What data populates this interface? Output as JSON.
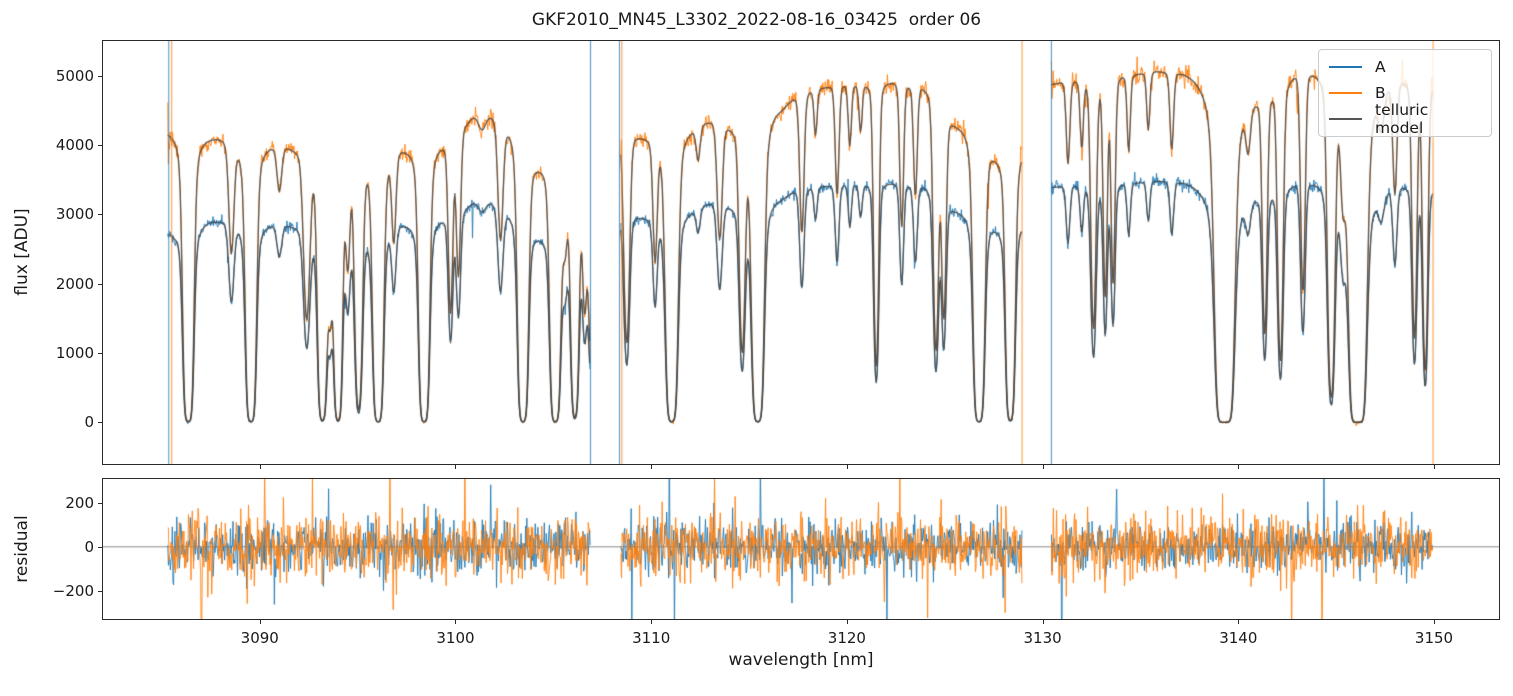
{
  "figure_title": "GKF2010_MN45_L3302_2022-08-16_03425  order 06",
  "chart_data": {
    "type": "line",
    "title": "GKF2010_MN45_L3302_2022-08-16_03425  order 06",
    "xlabel": "wavelength [nm]",
    "ylabel_top": "flux [ADU]",
    "ylabel_bottom": "residual",
    "xlim": [
      3081.99,
      3153.32
    ],
    "ylim_top": [
      -600,
      5500
    ],
    "ylim_bottom": [
      -330,
      310
    ],
    "xticks": [
      3090,
      3100,
      3110,
      3120,
      3130,
      3140,
      3150
    ],
    "xtick_labels": [
      "3090",
      "3100",
      "3110",
      "3120",
      "3130",
      "3140",
      "3150"
    ],
    "yticks_top": [
      0,
      1000,
      2000,
      3000,
      4000,
      5000
    ],
    "ytick_labels_top": [
      "0",
      "1000",
      "2000",
      "3000",
      "4000",
      "5000"
    ],
    "yticks_bottom": [
      -200,
      0,
      200
    ],
    "ytick_labels_bottom": [
      "−200",
      "0",
      "200"
    ],
    "legend": [
      {
        "label": "A",
        "color": "#1f77b4"
      },
      {
        "label": "B",
        "color": "#ff7f0e"
      },
      {
        "label": "telluric model",
        "color": "#555555"
      }
    ],
    "grid": false,
    "legend_position": "upper right",
    "model_color": "#434343",
    "model_alpha": 0.82,
    "series_alpha": 0.88,
    "zero_line_color": "#8a8a8a",
    "segments": [
      [
        3085.3,
        3106.9
      ],
      [
        3108.45,
        3128.95
      ],
      [
        3130.45,
        3149.95
      ]
    ],
    "continuum_A": [
      [
        3085.3,
        2780
      ],
      [
        3087.6,
        2960
      ],
      [
        3089.3,
        2950
      ],
      [
        3090.8,
        2920
      ],
      [
        3092.3,
        2870
      ],
      [
        3094.3,
        2900
      ],
      [
        3095.5,
        2880
      ],
      [
        3097.3,
        2960
      ],
      [
        3099.4,
        3020
      ],
      [
        3100.3,
        3120
      ],
      [
        3101.3,
        3270
      ],
      [
        3102.9,
        3130
      ],
      [
        3104.3,
        2840
      ],
      [
        3105.8,
        2890
      ],
      [
        3106.9,
        2870
      ],
      [
        3108.5,
        3060
      ],
      [
        3109.7,
        3020
      ],
      [
        3111.8,
        3120
      ],
      [
        3113.2,
        3220
      ],
      [
        3114.2,
        3180
      ],
      [
        3115.0,
        3120
      ],
      [
        3116.5,
        3280
      ],
      [
        3117.5,
        3380
      ],
      [
        3118.5,
        3420
      ],
      [
        3120.0,
        3450
      ],
      [
        3122.0,
        3480
      ],
      [
        3123.7,
        3450
      ],
      [
        3125.8,
        3120
      ],
      [
        3126.8,
        3080
      ],
      [
        3127.9,
        2920
      ],
      [
        3128.9,
        2940
      ],
      [
        3130.4,
        3420
      ],
      [
        3131.5,
        3450
      ],
      [
        3133.0,
        3460
      ],
      [
        3134.5,
        3480
      ],
      [
        3136.0,
        3520
      ],
      [
        3137.5,
        3540
      ],
      [
        3139.0,
        3520
      ],
      [
        3140.3,
        3420
      ],
      [
        3141.2,
        3380
      ],
      [
        3142.3,
        3480
      ],
      [
        3143.3,
        3580
      ],
      [
        3144.3,
        3560
      ],
      [
        3145.8,
        3520
      ],
      [
        3147.0,
        3490
      ],
      [
        3148.2,
        3500
      ],
      [
        3149.3,
        3460
      ],
      [
        3149.9,
        3420
      ]
    ],
    "continuum_B": [
      [
        3085.3,
        4250
      ],
      [
        3087.6,
        4180
      ],
      [
        3089.3,
        4100
      ],
      [
        3090.8,
        4080
      ],
      [
        3092.3,
        4000
      ],
      [
        3094.3,
        4050
      ],
      [
        3095.5,
        4020
      ],
      [
        3097.3,
        4080
      ],
      [
        3099.4,
        4120
      ],
      [
        3100.3,
        4350
      ],
      [
        3101.3,
        4550
      ],
      [
        3102.9,
        4380
      ],
      [
        3104.3,
        3920
      ],
      [
        3105.8,
        3980
      ],
      [
        3106.9,
        3950
      ],
      [
        3108.5,
        4250
      ],
      [
        3109.7,
        4200
      ],
      [
        3111.8,
        4320
      ],
      [
        3113.2,
        4420
      ],
      [
        3114.2,
        4350
      ],
      [
        3115.0,
        4280
      ],
      [
        3116.5,
        4600
      ],
      [
        3117.5,
        4750
      ],
      [
        3118.5,
        4850
      ],
      [
        3120.0,
        4900
      ],
      [
        3122.0,
        4950
      ],
      [
        3123.7,
        4900
      ],
      [
        3125.8,
        4380
      ],
      [
        3126.8,
        4300
      ],
      [
        3127.9,
        3980
      ],
      [
        3128.9,
        4000
      ],
      [
        3130.4,
        4920
      ],
      [
        3131.5,
        4980
      ],
      [
        3133.0,
        5020
      ],
      [
        3134.5,
        5060
      ],
      [
        3136.0,
        5120
      ],
      [
        3137.5,
        5150
      ],
      [
        3139.0,
        5120
      ],
      [
        3140.3,
        4900
      ],
      [
        3141.2,
        4850
      ],
      [
        3142.3,
        5050
      ],
      [
        3143.3,
        5230
      ],
      [
        3144.3,
        5200
      ],
      [
        3145.8,
        5120
      ],
      [
        3147.0,
        5060
      ],
      [
        3148.2,
        5060
      ],
      [
        3149.3,
        5000
      ],
      [
        3149.9,
        4950
      ]
    ],
    "absorption_lines": [
      [
        3086.35,
        6,
        0.15
      ],
      [
        3088.55,
        0.5,
        0.12
      ],
      [
        3089.55,
        6,
        0.15
      ],
      [
        3091.0,
        0.18,
        0.12
      ],
      [
        3092.4,
        0.95,
        0.14
      ],
      [
        3093.2,
        5,
        0.14
      ],
      [
        3093.6,
        0.8,
        0.1
      ],
      [
        3094.0,
        5,
        0.13
      ],
      [
        3094.5,
        0.5,
        0.1
      ],
      [
        3095.05,
        3.0,
        0.13
      ],
      [
        3096.05,
        6,
        0.15
      ],
      [
        3096.85,
        0.4,
        0.1
      ],
      [
        3098.4,
        6,
        0.15
      ],
      [
        3099.75,
        0.95,
        0.1
      ],
      [
        3100.15,
        0.7,
        0.1
      ],
      [
        3101.35,
        0.06,
        0.2
      ],
      [
        3102.3,
        0.5,
        0.12
      ],
      [
        3103.45,
        6,
        0.15
      ],
      [
        3105.1,
        6,
        0.15
      ],
      [
        3105.6,
        0.35,
        0.12
      ],
      [
        3106.1,
        4,
        0.13
      ],
      [
        3106.6,
        0.8,
        0.1
      ],
      [
        3107.0,
        2,
        0.14
      ],
      [
        3108.75,
        1.3,
        0.12
      ],
      [
        3110.2,
        0.55,
        0.1
      ],
      [
        3111.05,
        6,
        0.17
      ],
      [
        3112.4,
        0.12,
        0.1
      ],
      [
        3113.5,
        0.5,
        0.12
      ],
      [
        3114.65,
        1.4,
        0.12
      ],
      [
        3115.45,
        6,
        0.17
      ],
      [
        3117.7,
        0.55,
        0.1
      ],
      [
        3118.4,
        0.15,
        0.08
      ],
      [
        3119.5,
        0.4,
        0.09
      ],
      [
        3120.15,
        0.2,
        0.08
      ],
      [
        3120.7,
        0.15,
        0.08
      ],
      [
        3121.5,
        1.8,
        0.1
      ],
      [
        3122.8,
        0.55,
        0.09
      ],
      [
        3123.5,
        0.4,
        0.09
      ],
      [
        3124.55,
        1.5,
        0.11
      ],
      [
        3124.95,
        1.1,
        0.1
      ],
      [
        3126.75,
        6,
        0.16
      ],
      [
        3128.35,
        5,
        0.14
      ],
      [
        3131.3,
        0.28,
        0.09
      ],
      [
        3132.0,
        0.22,
        0.08
      ],
      [
        3132.6,
        1.3,
        0.11
      ],
      [
        3133.2,
        1.0,
        0.09
      ],
      [
        3133.6,
        0.9,
        0.09
      ],
      [
        3134.4,
        0.25,
        0.08
      ],
      [
        3135.4,
        0.18,
        0.08
      ],
      [
        3136.6,
        0.25,
        0.09
      ],
      [
        3139.3,
        10,
        0.24
      ],
      [
        3140.5,
        0.15,
        0.12
      ],
      [
        3141.35,
        1.3,
        0.1
      ],
      [
        3142.15,
        1.7,
        0.11
      ],
      [
        3143.3,
        1.0,
        0.1
      ],
      [
        3144.75,
        2.6,
        0.13
      ],
      [
        3145.35,
        0.35,
        0.12
      ],
      [
        3146.1,
        10,
        0.22
      ],
      [
        3147.3,
        0.12,
        0.15
      ],
      [
        3148.0,
        0.4,
        0.1
      ],
      [
        3149.0,
        1.4,
        0.1
      ],
      [
        3149.55,
        1.9,
        0.1
      ]
    ],
    "lorentz_mix": 0.2,
    "noise": {
      "A": {
        "base": 10,
        "scale": 0.0095,
        "residual_sigma": 58
      },
      "B": {
        "base": 12,
        "scale": 0.0115,
        "residual_sigma": 76
      },
      "spike_probability": 0.012,
      "edge_sigma_mult_B": 4,
      "edge_sigma_mult_A": 1.6,
      "edge_width_nm": 0.12,
      "hot_region": {
        "center": 3143.05,
        "half_width": 0.18,
        "series": "B",
        "sigma_mult": 3.2
      }
    },
    "artifact_vlines": [
      {
        "wavelength": 3085.35,
        "series": "A"
      },
      {
        "wavelength": 3085.5,
        "series": "B"
      },
      {
        "wavelength": 3106.9,
        "series": "A"
      },
      {
        "wavelength": 3108.38,
        "series": "A"
      },
      {
        "wavelength": 3108.5,
        "series": "B"
      },
      {
        "wavelength": 3128.95,
        "series": "B"
      },
      {
        "wavelength": 3130.45,
        "series": "A"
      },
      {
        "wavelength": 3149.95,
        "series": "B"
      }
    ]
  }
}
